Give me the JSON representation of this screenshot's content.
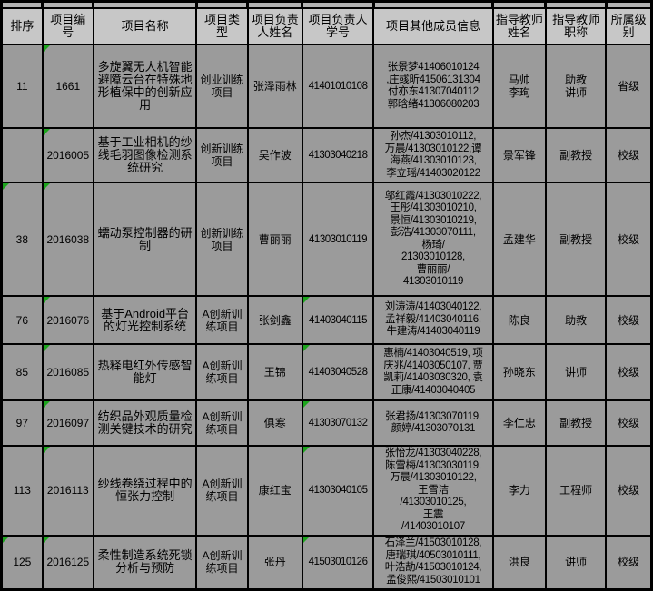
{
  "colors": {
    "header_bg": "#c7c7c7",
    "cell_bg": "#9b9b9b",
    "sliver_bg": "#b2b2b2",
    "grid": "#000000",
    "marker_green": "#1da51d"
  },
  "table": {
    "columns": [
      {
        "key": "rank",
        "label": "排序"
      },
      {
        "key": "project_no",
        "label": "项目编号"
      },
      {
        "key": "project_name",
        "label": "项目名称"
      },
      {
        "key": "project_type",
        "label": "项目类型"
      },
      {
        "key": "leader_name",
        "label": "项目负责人姓名"
      },
      {
        "key": "leader_id",
        "label": "项目负责人学号"
      },
      {
        "key": "members",
        "label": "项目其他成员信息"
      },
      {
        "key": "advisor_name",
        "label": "指导教师姓名"
      },
      {
        "key": "advisor_title",
        "label": "指导教师职称"
      },
      {
        "key": "level",
        "label": "所属级别"
      }
    ],
    "rows": [
      {
        "rank": "11",
        "project_no": "1661",
        "project_name": "多旋翼无人机智能避障云台在特殊地形植保中的创新应用",
        "project_type": "创业训练项目",
        "leader_name": "张泽雨林",
        "leader_id": "41401010108",
        "members": "张景梦41406010124\n,庄彧昕41506131304\n付亦东41307040112\n郭晗绪41306080203",
        "advisor_name": "马帅\n李珣",
        "advisor_title": "助教\n讲师",
        "level": "省级",
        "markers": [
          "project_no"
        ]
      },
      {
        "rank": "",
        "project_no": "2016005",
        "project_name": "基于工业相机的纱线毛羽图像检测系统研究",
        "project_type": "创新训练项目",
        "leader_name": "吴作波",
        "leader_id": "41303040218",
        "members": "孙杰/41303010112,\n万晨/41303010122,谭\n海燕/41303010123,\n李立瑶/41403020122",
        "advisor_name": "景军锋",
        "advisor_title": "副教授",
        "level": "校级",
        "markers": [
          "project_no"
        ]
      },
      {
        "rank": "38",
        "project_no": "2016038",
        "project_name": "蠕动泵控制器的研制",
        "project_type": "创新训练项目",
        "leader_name": "曹丽丽",
        "leader_id": "41303010119",
        "members": "邬红霞/41303010222,\n王彤/41303010210,\n景恒/41303010219,\n彭浩/41303070111,\n杨琦/\n21303010128,\n曹丽丽/\n41303010119",
        "advisor_name": "孟建华",
        "advisor_title": "副教授",
        "level": "校级",
        "markers": [
          "rank",
          "project_no"
        ]
      },
      {
        "rank": "76",
        "project_no": "2016076",
        "project_name": "基于Android平台的灯光控制系统",
        "project_type": "A创新训练项目",
        "leader_name": "张剑鑫",
        "leader_id": "41403040115",
        "members": "刘涛涛/41403040122,\n孟祥毅/41403040116,\n牛建涛/41403040119",
        "advisor_name": "陈良",
        "advisor_title": "助教",
        "level": "校级",
        "markers": [
          "project_no",
          "leader_id"
        ]
      },
      {
        "rank": "85",
        "project_no": "2016085",
        "project_name": "热释电红外传感智能灯",
        "project_type": "A创新训练项目",
        "leader_name": "王锦",
        "leader_id": "41403040528",
        "members": "惠楠/41403040519, 项\n庆兆/41403050107, 贾\n凯莉/41403030320, 袁\n正康/41403040405",
        "advisor_name": "孙晓东",
        "advisor_title": "讲师",
        "level": "校级",
        "markers": [
          "project_no",
          "leader_id"
        ]
      },
      {
        "rank": "97",
        "project_no": "2016097",
        "project_name": "纺织品外观质量检测关键技术的研究",
        "project_type": "A创新训练项目",
        "leader_name": "俱寒",
        "leader_id": "41303070132",
        "members": "张君扬/41303070119,\n颜婷/41303070131",
        "advisor_name": "李仁忠",
        "advisor_title": "副教授",
        "level": "校级",
        "markers": [
          "project_no",
          "leader_id"
        ]
      },
      {
        "rank": "113",
        "project_no": "2016113",
        "project_name": "纱线卷绕过程中的恒张力控制",
        "project_type": "A创新训练项目",
        "leader_name": "康红宝",
        "leader_id": "41303040105",
        "members": "张怡龙/41303040228,\n陈雪梅/41303030119,\n万晨/41303010122,\n王雪洁\n/41303010125,\n王震\n/41403010107",
        "advisor_name": "李力",
        "advisor_title": "工程师",
        "level": "校级",
        "markers": [
          "project_no",
          "leader_id"
        ]
      },
      {
        "rank": "125",
        "project_no": "2016125",
        "project_name": "柔性制造系统死锁分析与预防",
        "project_type": "A创新训练项目",
        "leader_name": "张丹",
        "leader_id": "41503010126",
        "members": "石泽兰/41503010128,\n唐瑞琪/40503010111,\n叶浩劼/41503010124,\n孟俊熙/41503010101",
        "advisor_name": "洪良",
        "advisor_title": "讲师",
        "level": "校级",
        "markers": [
          "rank",
          "project_no",
          "leader_id"
        ]
      }
    ]
  }
}
